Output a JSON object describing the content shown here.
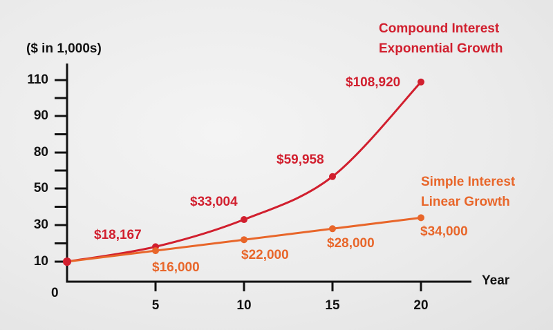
{
  "chart_data": {
    "type": "line",
    "ylabel": "($ in 1,000s)",
    "xlabel": "Year",
    "x_ticks": [
      0,
      5,
      10,
      15,
      20
    ],
    "x_tick_labels": [
      "5",
      "10",
      "15",
      "20"
    ],
    "origin_label": "0",
    "y_tick_labels": [
      "10",
      "30",
      "50",
      "80",
      "90",
      "110"
    ],
    "y_ticks": [
      10,
      30,
      50,
      80,
      90,
      110
    ],
    "grid": false,
    "series": [
      {
        "name": "Compound Interest Exponential Growth",
        "name_lines": [
          "Compound Interest",
          "Exponential Growth"
        ],
        "color": "#d11f2e",
        "x": [
          0,
          5,
          10,
          15,
          20
        ],
        "y": [
          10,
          18.167,
          33.004,
          59.958,
          108.92
        ],
        "labels": [
          "$18,167",
          "$33,004",
          "$59,958",
          "$108,920"
        ]
      },
      {
        "name": "Simple Interest Linear Growth",
        "name_lines": [
          "Simple Interest",
          "Linear Growth"
        ],
        "color": "#e8662a",
        "x": [
          0,
          5,
          10,
          15,
          20
        ],
        "y": [
          10,
          16,
          22,
          28,
          34
        ],
        "labels": [
          "$16,000",
          "$22,000",
          "$28,000",
          "$34,000"
        ]
      }
    ]
  }
}
